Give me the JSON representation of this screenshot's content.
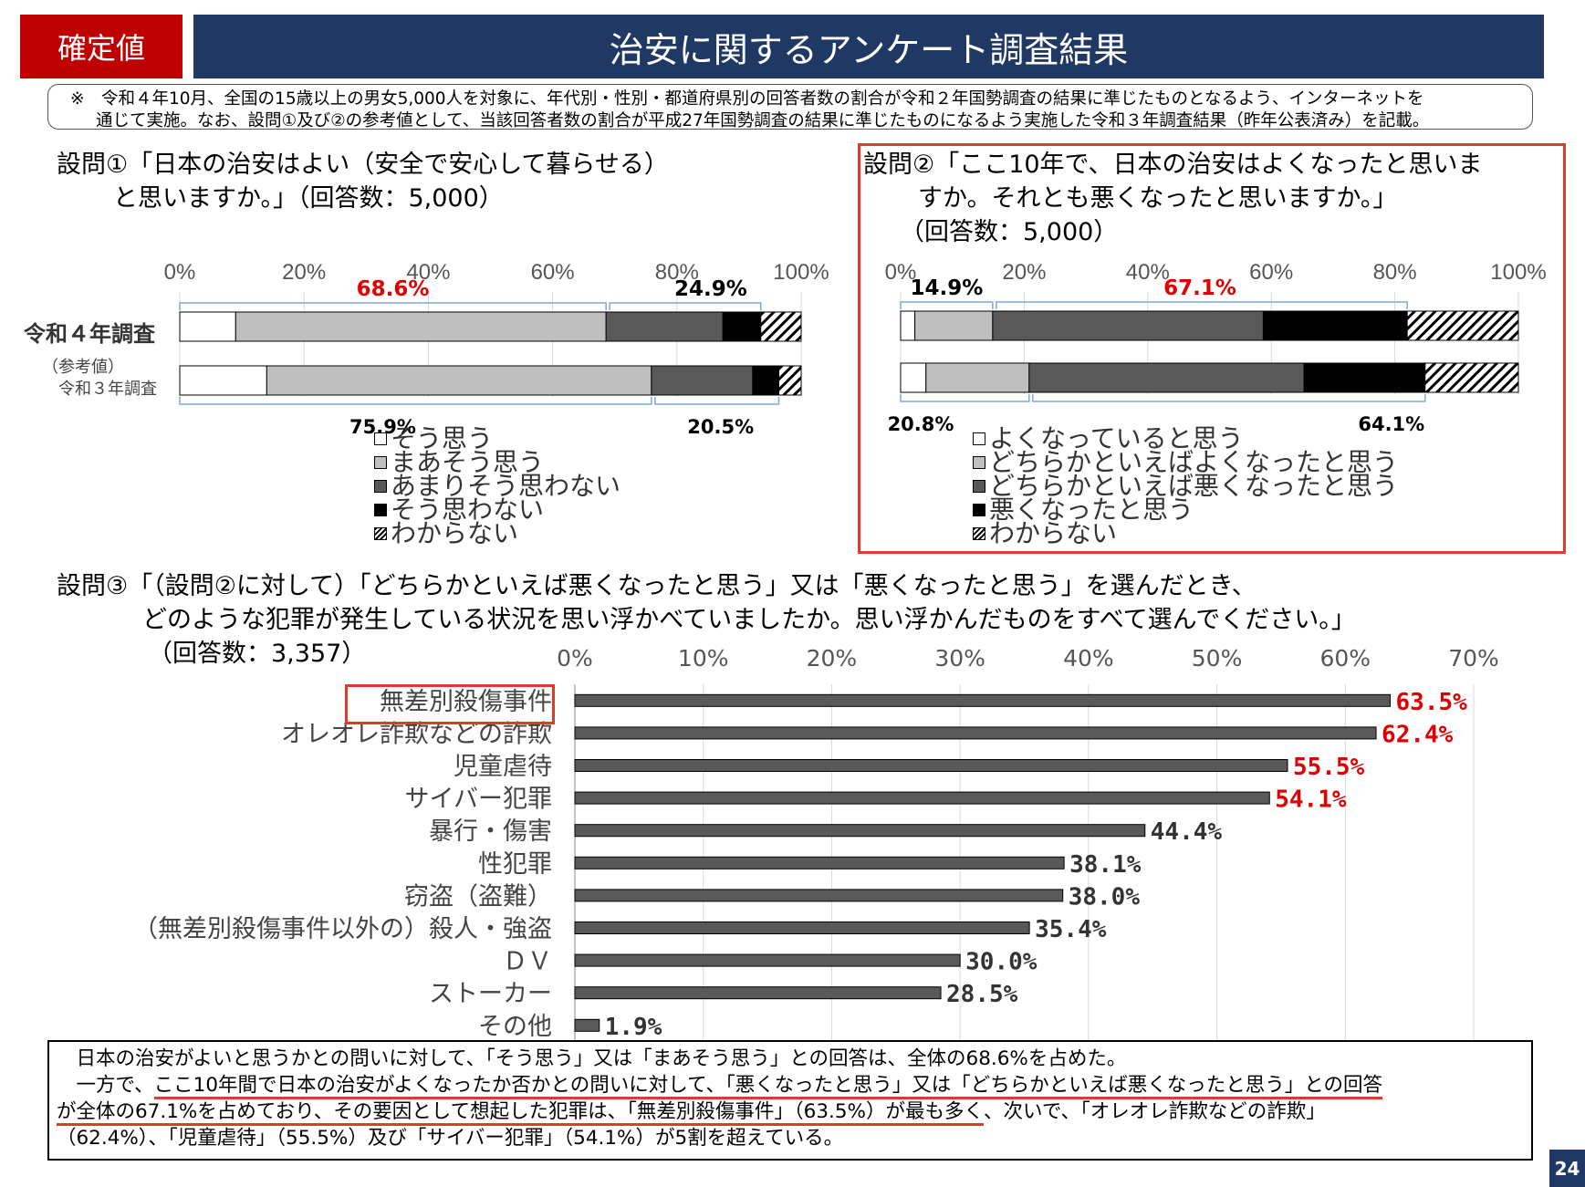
{
  "header": {
    "badge": "確定値",
    "title": "治安に関するアンケート調査結果"
  },
  "note": {
    "line1": "※　令和４年10月、全国の15歳以上の男女5,000人を対象に、年代別・性別・都道府県別の回答者数の割合が令和２年国勢調査の結果に準じたものとなるよう、インターネットを",
    "line2": "通じて実施。なお、設問①及び②の参考値として、当該回答者数の割合が平成27年国勢調査の結果に準じたものになるよう実施した令和３年調査結果（昨年公表済み）を記載。"
  },
  "q1": {
    "title_line1": "設問①「日本の治安はよい（安全で安心して暮らせる）",
    "title_line2": "と思いますか。」（回答数：5,000）",
    "row1_label": "令和４年調査",
    "row2_label_a": "（参考値）",
    "row2_label_b": "令和３年調査",
    "legend": [
      "そう思う",
      "まあそう思う",
      "あまりそう思わない",
      "そう思わない",
      "わからない"
    ]
  },
  "q2": {
    "title_line1": "設問②「ここ10年で、日本の治安はよくなったと思いま",
    "title_line2": "すか。それとも悪くなったと思いますか。」",
    "title_line3": "（回答数：5,000）",
    "legend": [
      "よくなっていると思う",
      "どちらかといえばよくなったと思う",
      "どちらかといえば悪くなったと思う",
      "悪くなったと思う",
      "わからない"
    ]
  },
  "q3": {
    "title_line1": "設問③「（設問②に対して）「どちらかといえば悪くなったと思う」又は「悪くなったと思う」を選んだとき、",
    "title_line2": "どのような犯罪が発生している状況を思い浮かべていましたか。思い浮かんだものをすべて選んでください。」",
    "title_line3": "（回答数：3,357）"
  },
  "chart_data": [
    {
      "type": "bar",
      "orientation": "horizontal-stacked",
      "categories": [
        "令和４年調査",
        "（参考値）令和３年調査"
      ],
      "xlim": [
        0,
        100
      ],
      "xticks": [
        "0%",
        "20%",
        "40%",
        "60%",
        "80%",
        "100%"
      ],
      "series": [
        {
          "name": "そう思う",
          "values": [
            9.0,
            14.0
          ],
          "color": "#ffffff",
          "pattern": "none"
        },
        {
          "name": "まあそう思う",
          "values": [
            59.6,
            61.9
          ],
          "color": "#bfbfbf",
          "pattern": "none"
        },
        {
          "name": "あまりそう思わない",
          "values": [
            18.8,
            16.3
          ],
          "color": "#595959",
          "pattern": "none"
        },
        {
          "name": "そう思わない",
          "values": [
            6.1,
            4.2
          ],
          "color": "#000000",
          "pattern": "none"
        },
        {
          "name": "わからない",
          "values": [
            6.5,
            3.6
          ],
          "color": "#ffffff",
          "pattern": "hatch"
        }
      ],
      "group_labels": {
        "top_positive": "68.6%",
        "top_negative": "24.9%",
        "bottom_positive": "75.9%",
        "bottom_negative": "20.5%"
      },
      "legend_position": "bottom"
    },
    {
      "type": "bar",
      "orientation": "horizontal-stacked",
      "categories": [
        "令和４年調査",
        "（参考値）令和３年調査"
      ],
      "xlim": [
        0,
        100
      ],
      "xticks": [
        "0%",
        "20%",
        "40%",
        "60%",
        "80%",
        "100%"
      ],
      "series": [
        {
          "name": "よくなっていると思う",
          "values": [
            2.3,
            4.1
          ],
          "color": "#ffffff",
          "pattern": "none"
        },
        {
          "name": "どちらかといえばよくなったと思う",
          "values": [
            12.6,
            16.7
          ],
          "color": "#bfbfbf",
          "pattern": "none"
        },
        {
          "name": "どちらかといえば悪くなったと思う",
          "values": [
            43.8,
            44.5
          ],
          "color": "#595959",
          "pattern": "none"
        },
        {
          "name": "悪くなったと思う",
          "values": [
            23.3,
            19.6
          ],
          "color": "#000000",
          "pattern": "none"
        },
        {
          "name": "わからない",
          "values": [
            18.0,
            15.1
          ],
          "color": "#ffffff",
          "pattern": "hatch"
        }
      ],
      "group_labels": {
        "top_positive": "14.9%",
        "top_negative": "67.1%",
        "bottom_positive": "20.8%",
        "bottom_negative": "64.1%"
      },
      "legend_position": "bottom"
    },
    {
      "type": "bar",
      "orientation": "horizontal",
      "categories": [
        "無差別殺傷事件",
        "オレオレ詐欺などの詐欺",
        "児童虐待",
        "サイバー犯罪",
        "暴行・傷害",
        "性犯罪",
        "窃盗（盗難）",
        "（無差別殺傷事件以外の）殺人・強盗",
        "ＤＶ",
        "ストーカー",
        "その他"
      ],
      "values": [
        63.5,
        62.4,
        55.5,
        54.1,
        44.4,
        38.1,
        38.0,
        35.4,
        30.0,
        28.5,
        1.9
      ],
      "labels": [
        "63.5%",
        "62.4%",
        "55.5%",
        "54.1%",
        "44.4%",
        "38.1%",
        "38.0%",
        "35.4%",
        "30.0%",
        "28.5%",
        "1.9%"
      ],
      "highlight_count": 4,
      "highlight_color": "#e00000",
      "bar_color": "#595959",
      "xlim": [
        0,
        70
      ],
      "xticks": [
        "0%",
        "10%",
        "20%",
        "30%",
        "40%",
        "50%",
        "60%",
        "70%"
      ],
      "grid": true
    }
  ],
  "summary": {
    "line1": "　日本の治安がよいと思うかとの問いに対して、「そう思う」又は「まあそう思う」との回答は、全体の68.6%を占めた。",
    "line2_a": "　一方で、",
    "line2_b": "ここ10年間で日本の治安がよくなったか否かとの問いに対して、「悪くなったと思う」又は「どちらかといえば悪くなったと思う」との回答",
    "line3_a": "が全体の67.1%を占めており、その要因として想起した犯罪は、「無差別殺傷事件」（63.5%）が最も多く",
    "line3_b": "、次いで、「オレオレ詐欺などの詐欺」",
    "line4": "（62.4%）、「児童虐待」（55.5%）及び「サイバー犯罪」（54.1%）が5割を超えている。"
  },
  "page_number": "24"
}
